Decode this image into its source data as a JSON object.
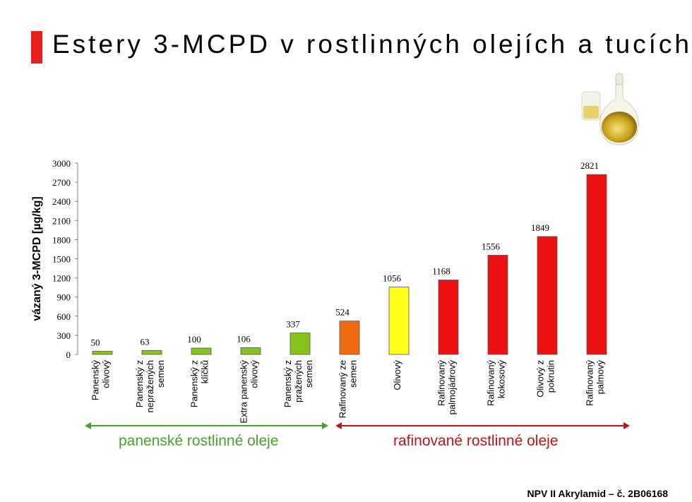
{
  "title": "Estery 3-MCPD v rostlinných olejích a tucích",
  "footer": "NPV II Akrylamid – č. 2B06168",
  "groups": [
    {
      "label": "panenské rostlinné oleje",
      "color": "#4aa02c"
    },
    {
      "label": "rafinované rostlinné oleje",
      "color": "#b8161c"
    }
  ],
  "chart_data": {
    "type": "bar",
    "ylabel": "vázaný 3-MCPD [µg/kg]",
    "ylim": [
      0,
      3000
    ],
    "yticks": [
      0,
      300,
      600,
      900,
      1200,
      1500,
      1800,
      2100,
      2400,
      2700,
      3000
    ],
    "grid": false,
    "categories": [
      [
        "Panenský",
        "olivový"
      ],
      [
        "Panenský z",
        "nepražených",
        "semen"
      ],
      [
        "Panenský z",
        "klíčků"
      ],
      [
        "Extra panenský",
        "olivový"
      ],
      [
        "Panenský z",
        "pražených",
        "semen"
      ],
      [
        "Rafinovaný ze",
        "semen"
      ],
      [
        "Olivový"
      ],
      [
        "Rafinovaný",
        "palmojádrový"
      ],
      [
        "Rafinovaný",
        "kokosový"
      ],
      [
        "Olivový z",
        "pokrutin"
      ],
      [
        "Rafinovaný",
        "palmový"
      ]
    ],
    "values": [
      50,
      63,
      100,
      106,
      337,
      524,
      1056,
      1168,
      1556,
      1849,
      2821
    ],
    "colors": [
      "#84c21c",
      "#84c21c",
      "#84c21c",
      "#84c21c",
      "#84c21c",
      "#f06a10",
      "#ffff1a",
      "#ee1111",
      "#ee1111",
      "#ee1111",
      "#ee1111"
    ]
  }
}
